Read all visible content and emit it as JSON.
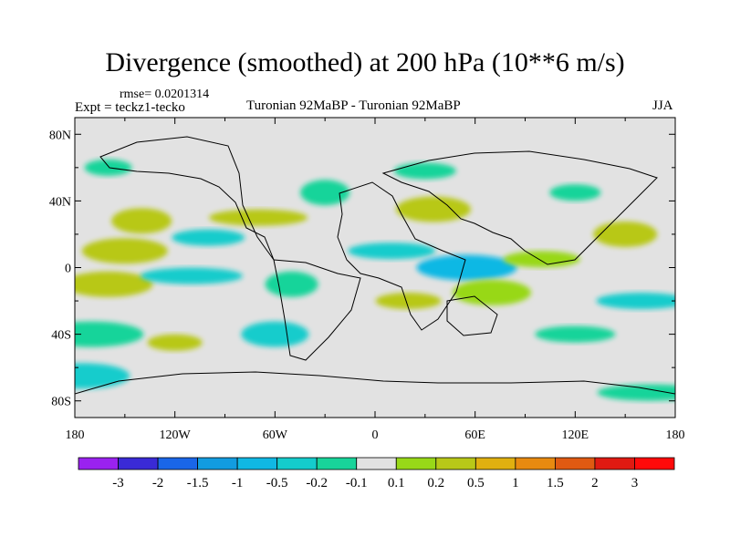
{
  "title": "Divergence (smoothed) at 200 hPa (10**6 m/s)",
  "rmse": "rmse= 0.0201314",
  "expt": "Expt = teckz1-tecko",
  "subtitle": "Turonian  92MaBP - Turonian  92MaBP",
  "season": "JJA",
  "map": {
    "lat_labels": [
      "80N",
      "40N",
      "0",
      "40S",
      "80S"
    ],
    "lon_labels": [
      "180",
      "120W",
      "60W",
      "0",
      "60E",
      "120E",
      "180"
    ],
    "colorbar_labels": [
      "-3",
      "-2",
      "-1.5",
      "-1",
      "-0.5",
      "-0.2",
      "-0.1",
      "0.1",
      "0.2",
      "0.5",
      "1",
      "1.5",
      "2",
      "3"
    ],
    "colorbar_colors": [
      "#9a22f0",
      "#3a2ad6",
      "#1a66e8",
      "#129ce0",
      "#10b8e4",
      "#14cccc",
      "#18d49a",
      "#e2e2e2",
      "#98d818",
      "#b8c818",
      "#e0b010",
      "#e88a10",
      "#e05a12",
      "#e01a12",
      "#ff0a0a"
    ],
    "fields": [
      {
        "lon": -160,
        "lat": 60,
        "color": "#18d49a"
      },
      {
        "lon": -140,
        "lat": 28,
        "color": "#b8c818"
      },
      {
        "lon": -100,
        "lat": 18,
        "color": "#14cccc"
      },
      {
        "lon": -150,
        "lat": 10,
        "color": "#b8c818"
      },
      {
        "lon": -70,
        "lat": 30,
        "color": "#b8c818"
      },
      {
        "lon": -30,
        "lat": 45,
        "color": "#18d49a"
      },
      {
        "lon": 30,
        "lat": 58,
        "color": "#18d49a"
      },
      {
        "lon": 35,
        "lat": 35,
        "color": "#b8c818"
      },
      {
        "lon": 10,
        "lat": 10,
        "color": "#14cccc"
      },
      {
        "lon": 55,
        "lat": 0,
        "color": "#10b8e4"
      },
      {
        "lon": 120,
        "lat": 45,
        "color": "#18d49a"
      },
      {
        "lon": 150,
        "lat": 20,
        "color": "#b8c818"
      },
      {
        "lon": 100,
        "lat": 5,
        "color": "#98d818"
      },
      {
        "lon": -160,
        "lat": -10,
        "color": "#b8c818"
      },
      {
        "lon": -110,
        "lat": -5,
        "color": "#14cccc"
      },
      {
        "lon": -50,
        "lat": -10,
        "color": "#18d49a"
      },
      {
        "lon": 20,
        "lat": -20,
        "color": "#b8c818"
      },
      {
        "lon": 70,
        "lat": -15,
        "color": "#98d818"
      },
      {
        "lon": 160,
        "lat": -20,
        "color": "#14cccc"
      },
      {
        "lon": -170,
        "lat": -40,
        "color": "#18d49a"
      },
      {
        "lon": -120,
        "lat": -45,
        "color": "#b8c818"
      },
      {
        "lon": -60,
        "lat": -40,
        "color": "#14cccc"
      },
      {
        "lon": 120,
        "lat": -40,
        "color": "#18d49a"
      },
      {
        "lon": -175,
        "lat": -65,
        "color": "#14cccc"
      },
      {
        "lon": 165,
        "lat": -75,
        "color": "#18d49a"
      }
    ]
  }
}
